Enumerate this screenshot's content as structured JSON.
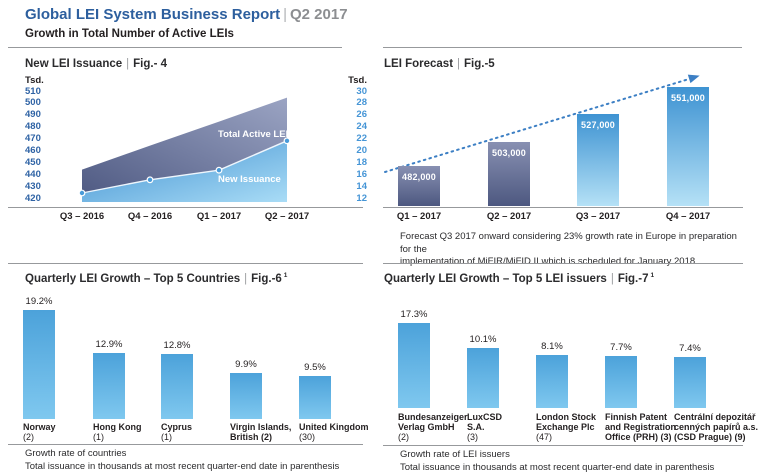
{
  "header": {
    "title": "Global LEI System Business Report",
    "separator": "|",
    "period": "Q2 2017",
    "subtitle": "Growth in Total Number of Active LEIs"
  },
  "chart_data": [
    {
      "type": "area",
      "title": "New LEI Issuance",
      "fig": "Fig.- 4",
      "categories": [
        "Q3 – 2016",
        "Q4 – 2016",
        "Q1 – 2017",
        "Q2 – 2017"
      ],
      "ylabel_left": "Tsd.",
      "ylabel_right": "Tsd.",
      "ylim_left": [
        420,
        510
      ],
      "ylim_right": [
        12,
        30
      ],
      "tick_labels_left": [
        "510",
        "500",
        "490",
        "480",
        "470",
        "460",
        "450",
        "440",
        "430",
        "420"
      ],
      "tick_labels_right": [
        "30",
        "28",
        "26",
        "24",
        "22",
        "20",
        "18",
        "16",
        "14",
        "12"
      ],
      "series": [
        {
          "name": "Total Active LEIs",
          "axis": "left",
          "values": [
            447,
            467,
            487,
            507
          ]
        },
        {
          "name": "New Issuance",
          "axis": "right",
          "values": [
            13.5,
            15.7,
            17.3,
            22.2
          ]
        }
      ],
      "grid": false,
      "legend": "labels inside areas"
    },
    {
      "type": "bar",
      "title": "LEI Forecast",
      "fig": "Fig.-5",
      "categories": [
        "Q1 – 2017",
        "Q2 – 2017",
        "Q3 – 2017",
        "Q4 – 2017"
      ],
      "values": [
        482000,
        503000,
        527000,
        551000
      ],
      "data_labels": [
        "482,000",
        "503,000",
        "527,000",
        "551,000"
      ],
      "trendline": "dotted ascending arrow",
      "footnote_lines": [
        "Forecast Q3 2017 onward considering 23% growth rate in Europe in preparation for the",
        "implementation of MiFIR/MiFID II which is scheduled for January 2018"
      ]
    },
    {
      "type": "bar",
      "title": "Quarterly LEI Growth – Top 5 Countries",
      "fig": "Fig.-6",
      "fig_sup": "1",
      "categories": [
        "Norway (2)",
        "Hong Kong (1)",
        "Cyprus (1)",
        "Virgin Islands, British (2)",
        "United Kingdom (30)"
      ],
      "category_lines": [
        [
          "Norway"
        ],
        [
          "Hong Kong"
        ],
        [
          "Cyprus"
        ],
        [
          "Virgin Islands,",
          "British (2)"
        ],
        [
          "United Kingdom"
        ]
      ],
      "counts": [
        "(2)",
        "(1)",
        "(1)",
        "",
        "(30)"
      ],
      "values": [
        19.2,
        12.9,
        12.8,
        9.9,
        9.5
      ],
      "data_labels": [
        "19.2%",
        "12.9%",
        "12.8%",
        "9.9%",
        "9.5%"
      ],
      "footnote_lines": [
        "Growth rate of countries",
        "Total issuance in thousands at most recent quarter-end date in parenthesis"
      ]
    },
    {
      "type": "bar",
      "title": "Quarterly LEI Growth – Top 5 LEI issuers",
      "fig": "Fig.-7",
      "fig_sup": "1",
      "categories": [
        "Bundesanzeiger Verlag GmbH (2)",
        "LuxCSD S.A. (3)",
        "London Stock Exchange Plc (47)",
        "Finnish Patent and Registration Office (PRH) (3)",
        "Centrální depozitář cenných papírů a.s. (CSD Prague) (9)"
      ],
      "category_lines": [
        [
          "Bundesanzeiger",
          "Verlag GmbH"
        ],
        [
          "LuxCSD",
          "S.A."
        ],
        [
          "London Stock",
          "Exchange Plc"
        ],
        [
          "Finnish Patent",
          "and Registration",
          "Office (PRH) (3)"
        ],
        [
          "Centrální depozitář",
          "cenných papírů a.s.",
          "(CSD Prague) (9)"
        ]
      ],
      "counts": [
        "(2)",
        "(3)",
        "(47)",
        "",
        ""
      ],
      "values": [
        17.3,
        10.1,
        8.1,
        7.7,
        7.4
      ],
      "data_labels": [
        "17.3%",
        "10.1%",
        "8.1%",
        "7.7%",
        "7.4%"
      ],
      "footnote_lines": [
        "Growth rate of LEI issuers",
        "Total issuance in thousands at most recent quarter-end date in parenthesis"
      ]
    }
  ],
  "colors": {
    "accent_blue": "#2d5f9e",
    "tick_blue_left": "#2f63a5",
    "tick_blue_right": "#4595d6",
    "bar_gray_top": "#8890b2",
    "bar_gray_bottom": "#4d5880",
    "bar_blue_top": "#3e93d2",
    "bar_blue_bottom": "#b5e1f6",
    "area_dark_from": "#4d5881",
    "area_dark_to": "#9ba4c3",
    "area_light_from": "#3e8fd0",
    "area_light_to": "#a9dcf6",
    "trend_blue": "#3c7fc4",
    "text_dark": "#231f20",
    "muted_gray": "#8c8e91"
  }
}
